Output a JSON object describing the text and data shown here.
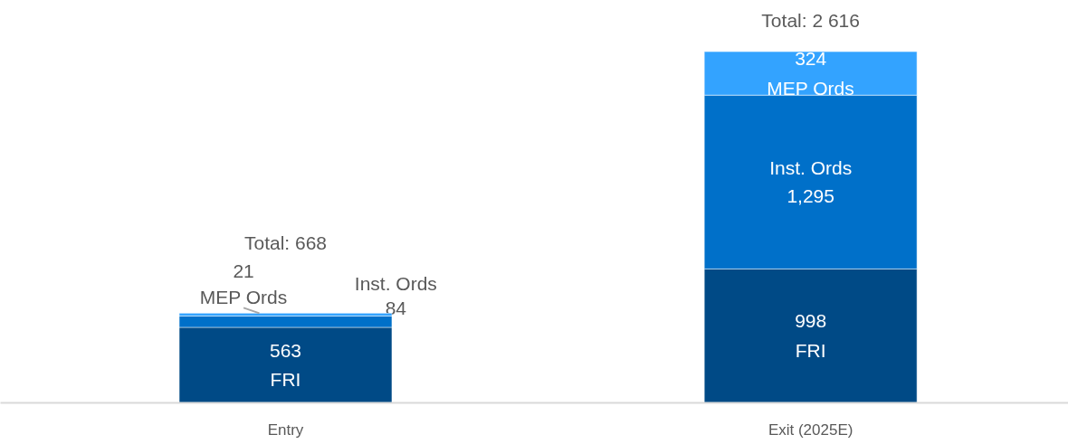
{
  "chart_data": {
    "type": "bar",
    "stacked": true,
    "categories": [
      "Entry",
      "Exit (2025E)"
    ],
    "series": [
      {
        "name": "FRI",
        "color": "#004a86",
        "values": [
          563,
          998
        ],
        "value_labels": [
          "563",
          "998"
        ]
      },
      {
        "name": "Inst. Ords",
        "color": "#0070c9",
        "values": [
          84,
          1295
        ],
        "value_labels": [
          "84",
          "1,295"
        ]
      },
      {
        "name": "MEP Ords",
        "color": "#33a3ff",
        "values": [
          21,
          324
        ],
        "value_labels": [
          "21",
          "324"
        ]
      }
    ],
    "totals": [
      "Total: 668",
      "Total: 2 616"
    ],
    "grid": false
  }
}
